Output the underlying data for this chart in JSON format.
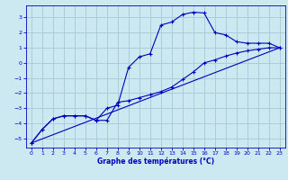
{
  "xlabel": "Graphe des températures (°C)",
  "bg_color": "#cce8f0",
  "grid_color": "#aaccdd",
  "line_color": "#0000bb",
  "xlim": [
    -0.5,
    23.5
  ],
  "ylim": [
    -5.6,
    3.8
  ],
  "xticks": [
    0,
    1,
    2,
    3,
    4,
    5,
    6,
    7,
    8,
    9,
    10,
    11,
    12,
    13,
    14,
    15,
    16,
    17,
    18,
    19,
    20,
    21,
    22,
    23
  ],
  "yticks": [
    -5,
    -4,
    -3,
    -2,
    -1,
    0,
    1,
    2,
    3
  ],
  "line1_x": [
    0,
    1,
    2,
    3,
    4,
    5,
    6,
    7,
    8,
    9,
    10,
    11,
    12,
    13,
    14,
    15,
    16,
    17,
    18,
    19,
    20,
    21,
    22,
    23
  ],
  "line1_y": [
    -5.3,
    -4.4,
    -3.7,
    -3.5,
    -3.5,
    -3.5,
    -3.8,
    -3.0,
    -2.8,
    -0.3,
    0.4,
    0.6,
    2.5,
    2.7,
    3.2,
    3.35,
    3.3,
    2.0,
    1.85,
    1.4,
    1.3,
    1.3,
    1.3,
    1.0
  ],
  "line2_x": [
    0,
    1,
    2,
    3,
    4,
    5,
    6,
    7,
    8,
    9,
    10,
    11,
    12,
    13,
    14,
    15,
    16,
    17,
    18,
    19,
    20,
    21,
    22,
    23
  ],
  "line2_y": [
    -5.3,
    -4.4,
    -3.7,
    -3.5,
    -3.5,
    -3.5,
    -3.8,
    -3.8,
    -2.6,
    -2.5,
    -2.3,
    -2.1,
    -1.9,
    -1.6,
    -1.1,
    -0.6,
    0.0,
    0.2,
    0.45,
    0.65,
    0.8,
    0.9,
    1.0,
    1.0
  ],
  "line3_x": [
    0,
    23
  ],
  "line3_y": [
    -5.3,
    1.0
  ]
}
